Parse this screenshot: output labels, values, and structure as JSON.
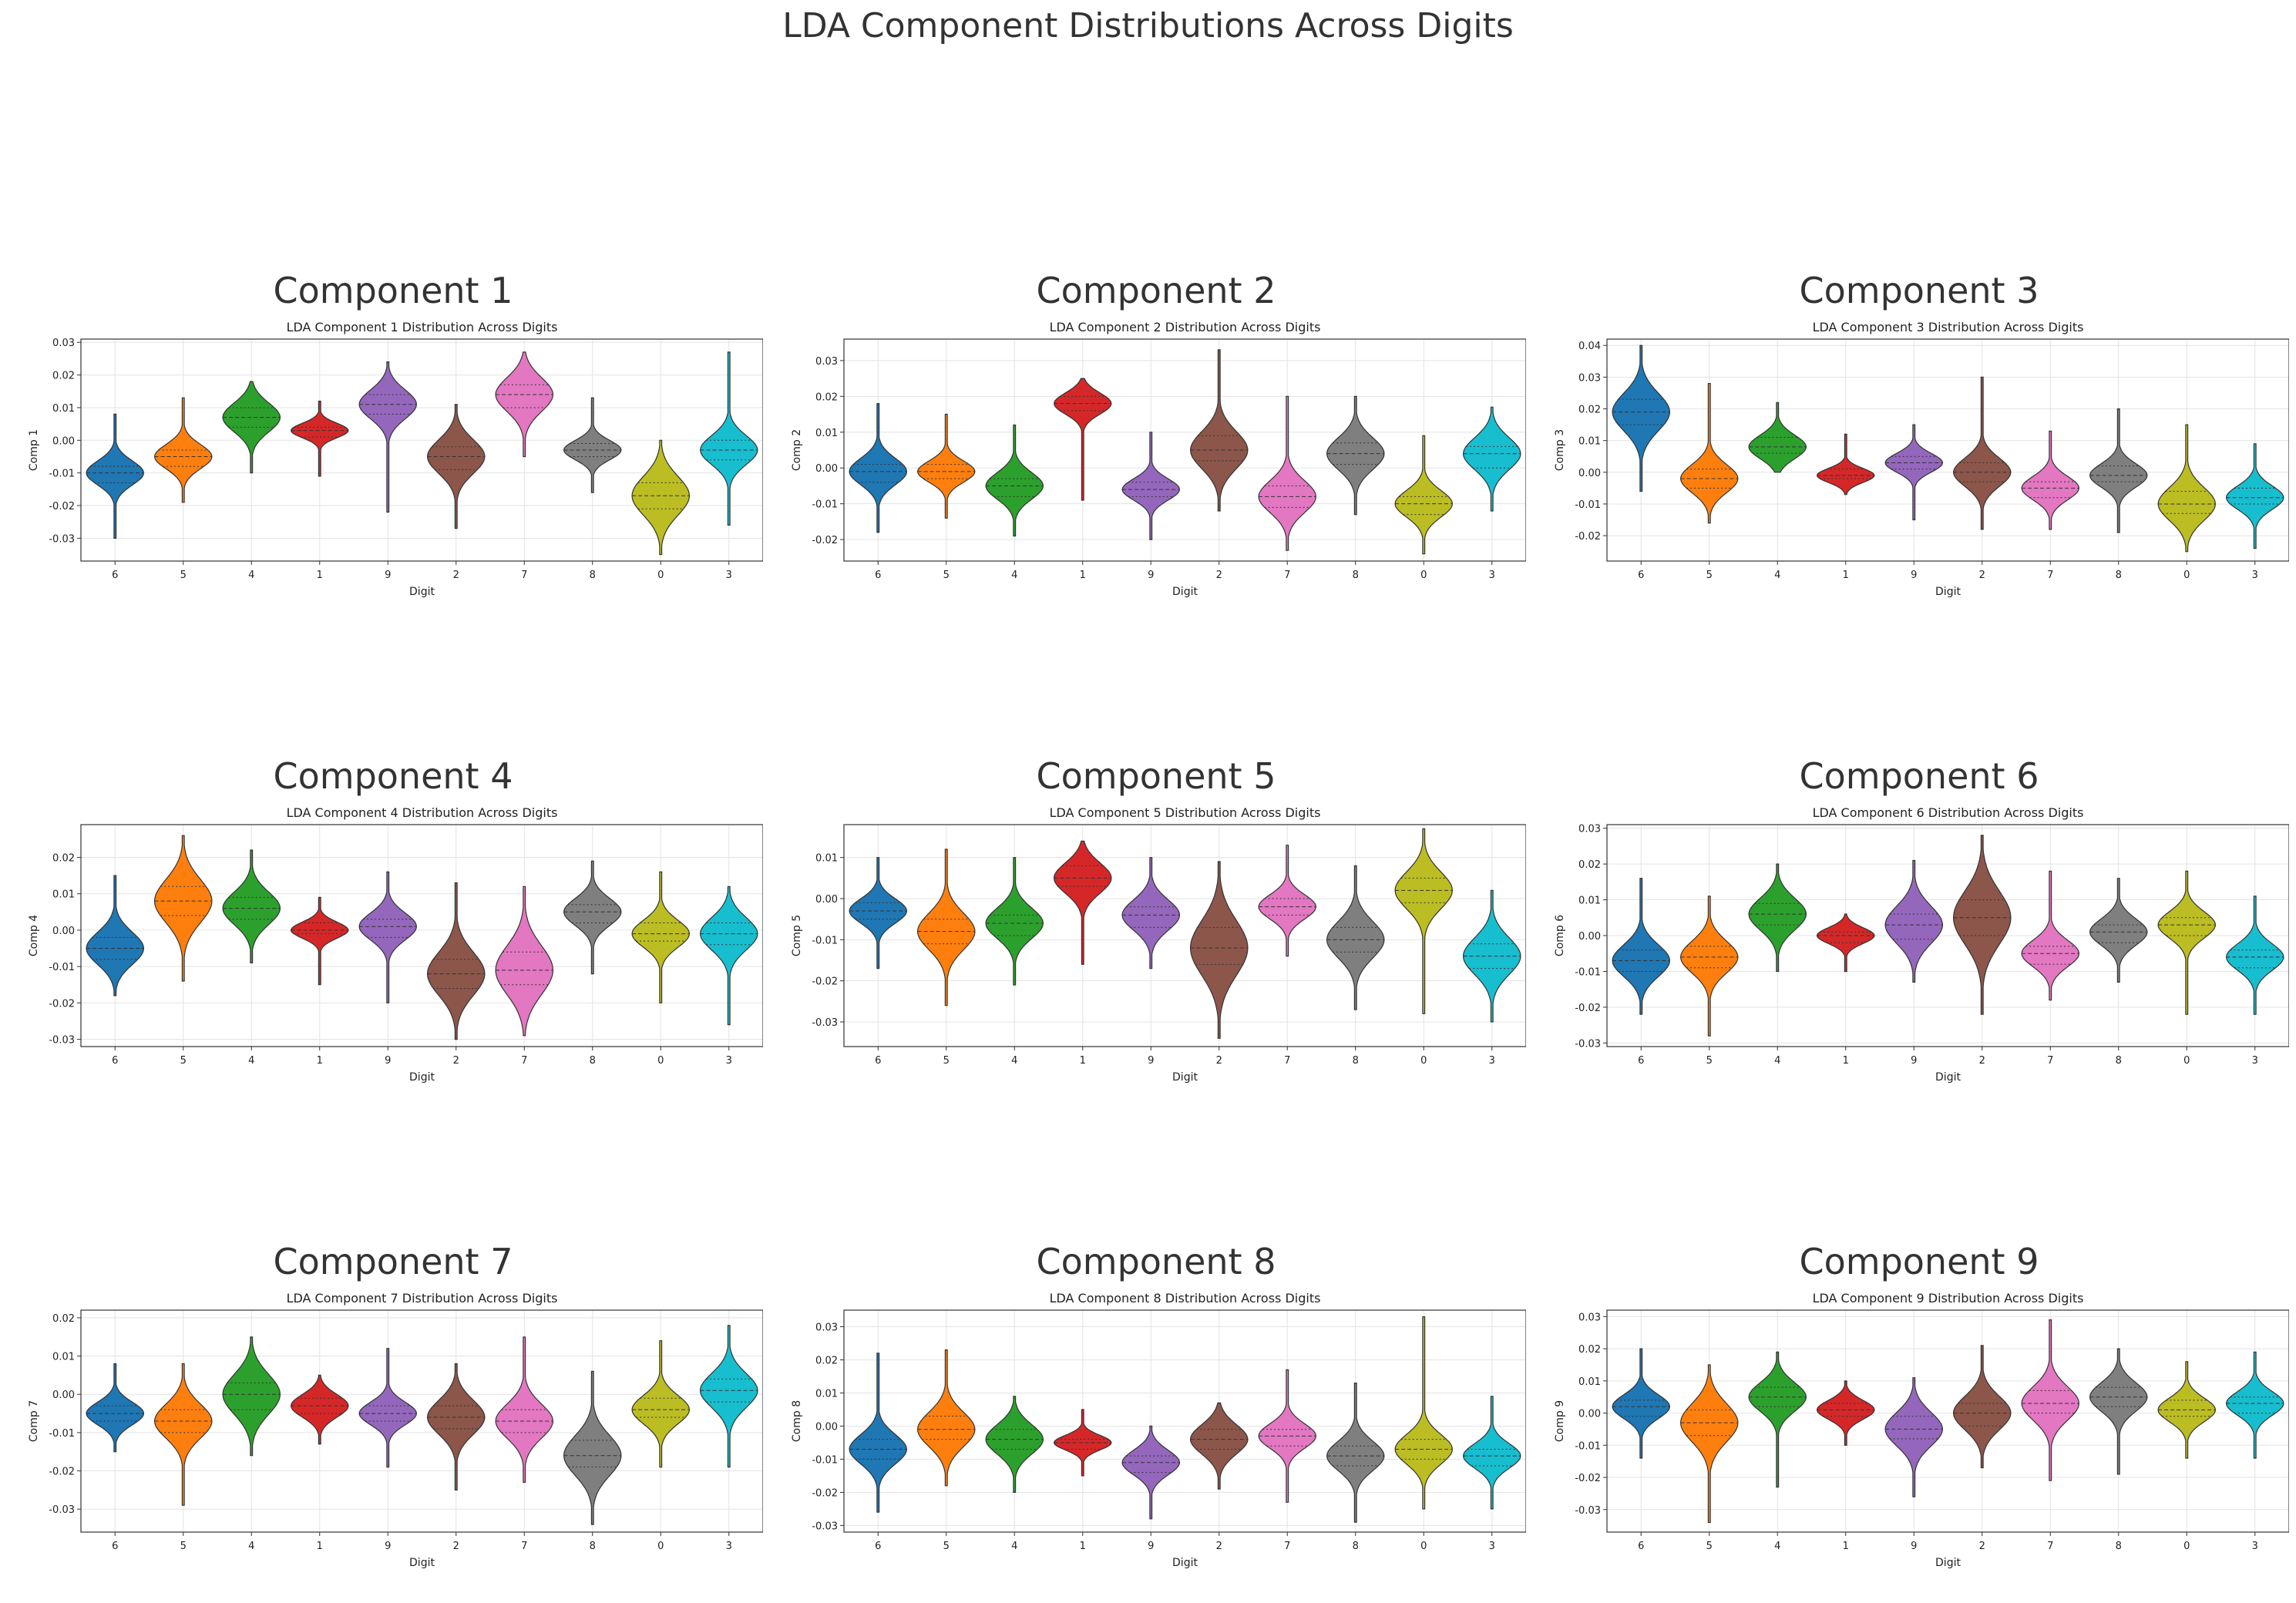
{
  "main_title": "LDA Component Distributions Across Digits",
  "colors": [
    "#1f77b4",
    "#ff7f0e",
    "#2ca02c",
    "#d62728",
    "#9467bd",
    "#8c564b",
    "#e377c2",
    "#7f7f7f",
    "#bcbd22",
    "#17becf"
  ],
  "chart_data": [
    {
      "type": "violin",
      "panel_title": "Component 1",
      "title": "LDA Component 1 Distribution Across Digits",
      "xlabel": "Digit",
      "ylabel": "Comp 1",
      "categories": [
        "6",
        "5",
        "4",
        "1",
        "9",
        "2",
        "7",
        "8",
        "0",
        "3"
      ],
      "yticks": [
        -0.03,
        -0.02,
        -0.01,
        0.0,
        0.01,
        0.02,
        0.03
      ],
      "ylim": [
        -0.037,
        0.031
      ],
      "min": [
        -0.03,
        -0.019,
        -0.01,
        -0.011,
        -0.022,
        -0.027,
        -0.005,
        -0.016,
        -0.035,
        -0.026
      ],
      "max": [
        0.008,
        0.013,
        0.018,
        0.012,
        0.024,
        0.011,
        0.027,
        0.013,
        0.0,
        0.027
      ],
      "q1": [
        -0.013,
        -0.008,
        0.004,
        0.001,
        0.008,
        -0.009,
        0.01,
        -0.005,
        -0.021,
        -0.006
      ],
      "median": [
        -0.01,
        -0.005,
        0.007,
        0.003,
        0.011,
        -0.005,
        0.014,
        -0.003,
        -0.017,
        -0.003
      ],
      "q3": [
        -0.008,
        -0.003,
        0.01,
        0.004,
        0.014,
        -0.002,
        0.017,
        -0.001,
        -0.013,
        0.0
      ]
    },
    {
      "type": "violin",
      "panel_title": "Component 2",
      "title": "LDA Component 2 Distribution Across Digits",
      "xlabel": "Digit",
      "ylabel": "Comp 2",
      "categories": [
        "6",
        "5",
        "4",
        "1",
        "9",
        "2",
        "7",
        "8",
        "0",
        "3"
      ],
      "yticks": [
        -0.02,
        -0.01,
        0.0,
        0.01,
        0.02,
        0.03
      ],
      "ylim": [
        -0.026,
        0.036
      ],
      "min": [
        -0.018,
        -0.014,
        -0.019,
        -0.009,
        -0.02,
        -0.012,
        -0.023,
        -0.013,
        -0.024,
        -0.012
      ],
      "max": [
        0.018,
        0.015,
        0.012,
        0.025,
        0.01,
        0.033,
        0.02,
        0.02,
        0.009,
        0.017
      ],
      "q1": [
        -0.004,
        -0.003,
        -0.008,
        0.016,
        -0.008,
        0.002,
        -0.011,
        0.001,
        -0.013,
        0.0
      ],
      "median": [
        -0.001,
        -0.001,
        -0.005,
        0.018,
        -0.006,
        0.005,
        -0.008,
        0.004,
        -0.01,
        0.004
      ],
      "q3": [
        0.001,
        0.001,
        -0.003,
        0.02,
        -0.004,
        0.009,
        -0.005,
        0.007,
        -0.008,
        0.006
      ]
    },
    {
      "type": "violin",
      "panel_title": "Component 3",
      "title": "LDA Component 3 Distribution Across Digits",
      "xlabel": "Digit",
      "ylabel": "Comp 3",
      "categories": [
        "6",
        "5",
        "4",
        "1",
        "9",
        "2",
        "7",
        "8",
        "0",
        "3"
      ],
      "yticks": [
        -0.02,
        -0.01,
        0.0,
        0.01,
        0.02,
        0.03,
        0.04
      ],
      "ylim": [
        -0.028,
        0.042
      ],
      "min": [
        -0.006,
        -0.016,
        0.0,
        -0.007,
        -0.015,
        -0.018,
        -0.018,
        -0.019,
        -0.025,
        -0.024
      ],
      "max": [
        0.04,
        0.028,
        0.022,
        0.012,
        0.015,
        0.03,
        0.013,
        0.02,
        0.015,
        0.009
      ],
      "q1": [
        0.015,
        -0.005,
        0.006,
        -0.002,
        0.001,
        -0.003,
        -0.008,
        -0.003,
        -0.013,
        -0.01
      ],
      "median": [
        0.019,
        -0.002,
        0.008,
        -0.001,
        0.003,
        0.0,
        -0.005,
        -0.001,
        -0.01,
        -0.008
      ],
      "q3": [
        0.023,
        0.001,
        0.011,
        0.001,
        0.005,
        0.003,
        -0.003,
        0.002,
        -0.006,
        -0.005
      ]
    },
    {
      "type": "violin",
      "panel_title": "Component 4",
      "title": "LDA Component 4 Distribution Across Digits",
      "xlabel": "Digit",
      "ylabel": "Comp 4",
      "categories": [
        "6",
        "5",
        "4",
        "1",
        "9",
        "2",
        "7",
        "8",
        "0",
        "3"
      ],
      "yticks": [
        -0.03,
        -0.02,
        -0.01,
        0.0,
        0.01,
        0.02
      ],
      "ylim": [
        -0.032,
        0.029
      ],
      "min": [
        -0.018,
        -0.014,
        -0.009,
        -0.015,
        -0.02,
        -0.03,
        -0.029,
        -0.012,
        -0.02,
        -0.026
      ],
      "max": [
        0.015,
        0.026,
        0.022,
        0.009,
        0.016,
        0.013,
        0.012,
        0.019,
        0.016,
        0.012
      ],
      "q1": [
        -0.008,
        0.004,
        0.003,
        -0.001,
        -0.002,
        -0.016,
        -0.015,
        0.002,
        -0.003,
        -0.004
      ],
      "median": [
        -0.005,
        0.008,
        0.006,
        0.0,
        0.001,
        -0.012,
        -0.011,
        0.005,
        -0.001,
        -0.001
      ],
      "q3": [
        -0.002,
        0.012,
        0.009,
        0.002,
        0.003,
        -0.008,
        -0.006,
        0.007,
        0.002,
        0.002
      ]
    },
    {
      "type": "violin",
      "panel_title": "Component 5",
      "title": "LDA Component 5 Distribution Across Digits",
      "xlabel": "Digit",
      "ylabel": "Comp 5",
      "categories": [
        "6",
        "5",
        "4",
        "1",
        "9",
        "2",
        "7",
        "8",
        "0",
        "3"
      ],
      "yticks": [
        -0.03,
        -0.02,
        -0.01,
        0.0,
        0.01
      ],
      "ylim": [
        -0.036,
        0.018
      ],
      "min": [
        -0.017,
        -0.026,
        -0.021,
        -0.016,
        -0.017,
        -0.034,
        -0.014,
        -0.027,
        -0.028,
        -0.03
      ],
      "max": [
        0.01,
        0.012,
        0.01,
        0.014,
        0.01,
        0.009,
        0.013,
        0.008,
        0.017,
        0.002
      ],
      "q1": [
        -0.005,
        -0.011,
        -0.009,
        0.003,
        -0.007,
        -0.016,
        -0.004,
        -0.013,
        -0.001,
        -0.017
      ],
      "median": [
        -0.003,
        -0.008,
        -0.006,
        0.005,
        -0.004,
        -0.012,
        -0.002,
        -0.01,
        0.002,
        -0.014
      ],
      "q3": [
        -0.001,
        -0.005,
        -0.004,
        0.008,
        -0.002,
        -0.007,
        0.0,
        -0.007,
        0.005,
        -0.011
      ]
    },
    {
      "type": "violin",
      "panel_title": "Component 6",
      "title": "LDA Component 6 Distribution Across Digits",
      "xlabel": "Digit",
      "ylabel": "Comp 6",
      "categories": [
        "6",
        "5",
        "4",
        "1",
        "9",
        "2",
        "7",
        "8",
        "0",
        "3"
      ],
      "yticks": [
        -0.03,
        -0.02,
        -0.01,
        0.0,
        0.01,
        0.02,
        0.03
      ],
      "ylim": [
        -0.031,
        0.031
      ],
      "min": [
        -0.022,
        -0.028,
        -0.01,
        -0.01,
        -0.013,
        -0.022,
        -0.018,
        -0.013,
        -0.022,
        -0.022
      ],
      "max": [
        0.016,
        0.011,
        0.02,
        0.006,
        0.021,
        0.028,
        0.018,
        0.016,
        0.018,
        0.011
      ],
      "q1": [
        -0.01,
        -0.009,
        0.003,
        -0.002,
        -0.001,
        0.0,
        -0.008,
        -0.002,
        0.0,
        -0.009
      ],
      "median": [
        -0.007,
        -0.006,
        0.006,
        0.0,
        0.003,
        0.005,
        -0.005,
        0.001,
        0.003,
        -0.006
      ],
      "q3": [
        -0.004,
        -0.003,
        0.009,
        0.001,
        0.006,
        0.01,
        -0.003,
        0.003,
        0.005,
        -0.004
      ]
    },
    {
      "type": "violin",
      "panel_title": "Component 7",
      "title": "LDA Component 7 Distribution Across Digits",
      "xlabel": "Digit",
      "ylabel": "Comp 7",
      "categories": [
        "6",
        "5",
        "4",
        "1",
        "9",
        "2",
        "7",
        "8",
        "0",
        "3"
      ],
      "yticks": [
        -0.03,
        -0.02,
        -0.01,
        0.0,
        0.01,
        0.02
      ],
      "ylim": [
        -0.036,
        0.022
      ],
      "min": [
        -0.015,
        -0.029,
        -0.016,
        -0.013,
        -0.019,
        -0.025,
        -0.023,
        -0.034,
        -0.019,
        -0.019
      ],
      "max": [
        0.008,
        0.008,
        0.015,
        0.005,
        0.012,
        0.008,
        0.015,
        0.006,
        0.014,
        0.018
      ],
      "q1": [
        -0.007,
        -0.01,
        -0.004,
        -0.005,
        -0.007,
        -0.009,
        -0.01,
        -0.019,
        -0.006,
        -0.002
      ],
      "median": [
        -0.005,
        -0.007,
        0.0,
        -0.003,
        -0.005,
        -0.006,
        -0.007,
        -0.016,
        -0.004,
        0.001
      ],
      "q3": [
        -0.003,
        -0.004,
        0.003,
        -0.001,
        -0.003,
        -0.003,
        -0.004,
        -0.012,
        -0.001,
        0.004
      ]
    },
    {
      "type": "violin",
      "panel_title": "Component 8",
      "title": "LDA Component 8 Distribution Across Digits",
      "xlabel": "Digit",
      "ylabel": "Comp 8",
      "categories": [
        "6",
        "5",
        "4",
        "1",
        "9",
        "2",
        "7",
        "8",
        "0",
        "3"
      ],
      "yticks": [
        -0.03,
        -0.02,
        -0.01,
        0.0,
        0.01,
        0.02,
        0.03
      ],
      "ylim": [
        -0.032,
        0.035
      ],
      "min": [
        -0.026,
        -0.018,
        -0.02,
        -0.015,
        -0.028,
        -0.019,
        -0.023,
        -0.029,
        -0.025,
        -0.025
      ],
      "max": [
        0.022,
        0.023,
        0.009,
        0.005,
        0.0,
        0.007,
        0.017,
        0.013,
        0.033,
        0.009
      ],
      "q1": [
        -0.01,
        -0.004,
        -0.007,
        -0.007,
        -0.014,
        -0.007,
        -0.006,
        -0.012,
        -0.01,
        -0.012
      ],
      "median": [
        -0.007,
        -0.001,
        -0.004,
        -0.005,
        -0.011,
        -0.004,
        -0.003,
        -0.009,
        -0.007,
        -0.009
      ],
      "q3": [
        -0.004,
        0.003,
        -0.001,
        -0.004,
        -0.009,
        -0.001,
        -0.001,
        -0.006,
        -0.004,
        -0.007
      ]
    },
    {
      "type": "violin",
      "panel_title": "Component 9",
      "title": "LDA Component 9 Distribution Across Digits",
      "xlabel": "Digit",
      "ylabel": "Comp 9",
      "categories": [
        "6",
        "5",
        "4",
        "1",
        "9",
        "2",
        "7",
        "8",
        "0",
        "3"
      ],
      "yticks": [
        -0.03,
        -0.02,
        -0.01,
        0.0,
        0.01,
        0.02,
        0.03
      ],
      "ylim": [
        -0.037,
        0.032
      ],
      "min": [
        -0.014,
        -0.034,
        -0.023,
        -0.01,
        -0.026,
        -0.017,
        -0.021,
        -0.019,
        -0.014,
        -0.014
      ],
      "max": [
        0.02,
        0.015,
        0.019,
        0.01,
        0.011,
        0.021,
        0.029,
        0.02,
        0.016,
        0.019
      ],
      "q1": [
        -0.001,
        -0.007,
        0.002,
        -0.001,
        -0.008,
        -0.004,
        0.0,
        0.002,
        -0.001,
        0.0
      ],
      "median": [
        0.002,
        -0.003,
        0.005,
        0.001,
        -0.005,
        0.0,
        0.003,
        0.005,
        0.001,
        0.003
      ],
      "q3": [
        0.004,
        0.001,
        0.008,
        0.003,
        -0.001,
        0.003,
        0.007,
        0.008,
        0.004,
        0.005
      ]
    }
  ]
}
